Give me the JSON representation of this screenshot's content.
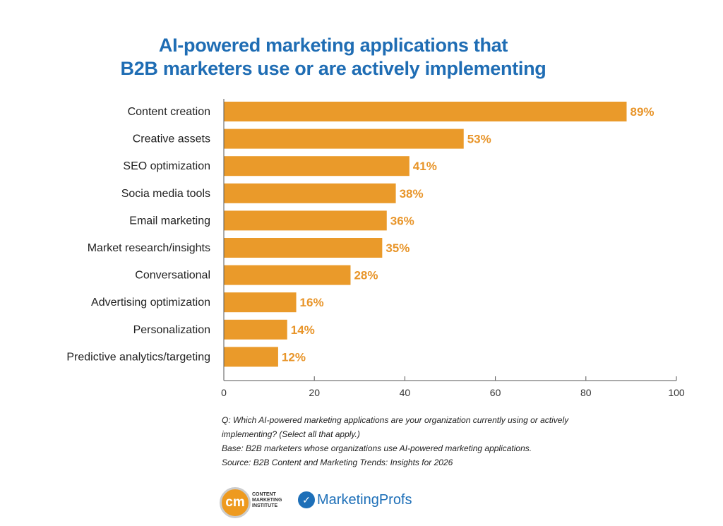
{
  "chart_data": {
    "type": "bar",
    "orientation": "horizontal",
    "title": "AI-powered marketing applications that B2B marketers use or are actively implementing",
    "title_lines": [
      "AI-powered marketing applications that",
      "B2B marketers use or are actively implementing"
    ],
    "categories": [
      "Content creation",
      "Creative assets",
      "SEO optimization",
      "Socia media tools",
      "Email marketing",
      "Market research/insights",
      "Conversational",
      "Advertising optimization",
      "Personalization",
      "Predictive analytics/targeting"
    ],
    "values": [
      89,
      53,
      41,
      38,
      36,
      35,
      28,
      16,
      14,
      12
    ],
    "data_labels": [
      "89%",
      "53%",
      "41%",
      "38%",
      "36%",
      "35%",
      "28%",
      "16%",
      "14%",
      "12%"
    ],
    "xlim": [
      0,
      100
    ],
    "xticks": [
      0,
      20,
      40,
      60,
      80,
      100
    ],
    "xlabel": "",
    "ylabel": "",
    "grid": false,
    "bar_color": "#ea9a2a",
    "label_color": "#e8952a"
  },
  "notes": [
    "Q: Which AI-powered marketing applications are your organization currently using or actively",
    "implementing? (Select all that apply.)",
    "Base: B2B marketers whose organizations use AI-powered marketing applications.",
    "Source: B2B Content and Marketing Trends: Insights for 2026"
  ],
  "logos": {
    "cmi": "CONTENT MARKETING INSTITUTE",
    "cmi_mark": "cm",
    "mp": "MarketingProfs"
  }
}
